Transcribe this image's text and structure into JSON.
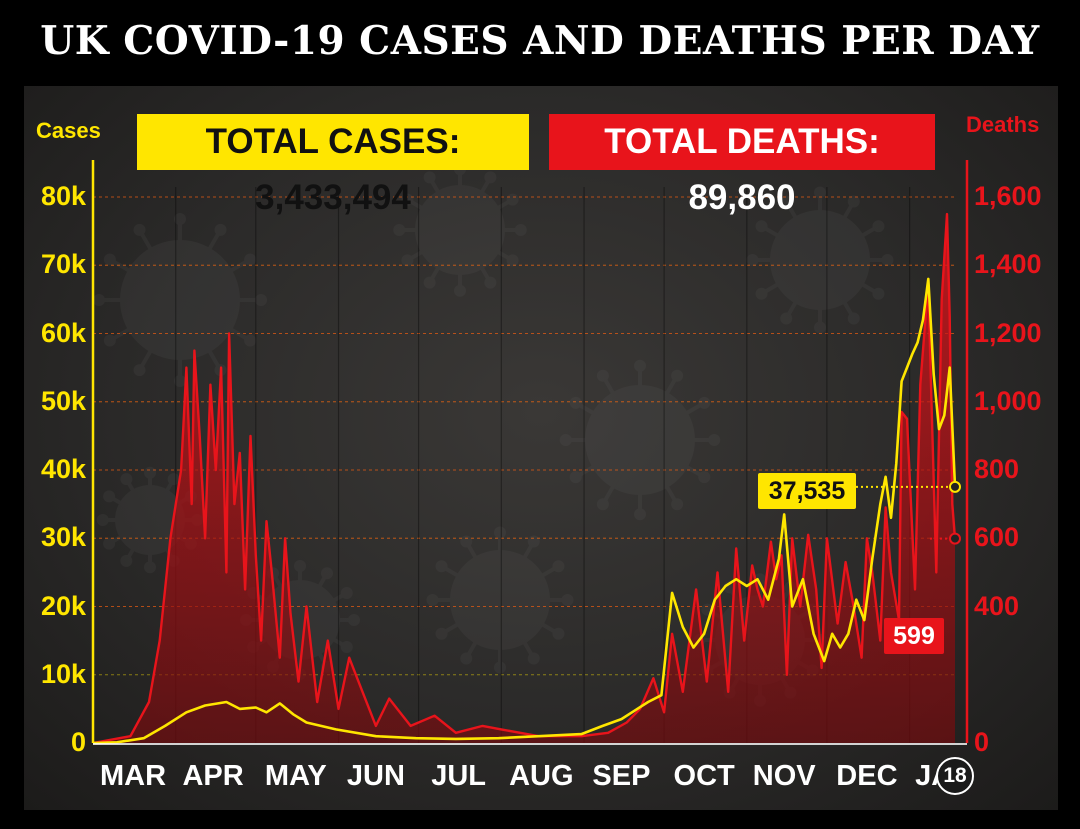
{
  "title": "UK COVID-19 CASES AND DEATHS PER DAY",
  "totals": {
    "cases_label": "TOTAL CASES: 3,433,494",
    "deaths_label": "TOTAL DEATHS: 89,860"
  },
  "colors": {
    "cases": "#ffe600",
    "deaths": "#e8141b",
    "background": "#2b2a29",
    "title": "#ffffff"
  },
  "latest": {
    "cases_label": "37,535",
    "deaths_label": "599",
    "date_label": "18"
  },
  "chart_data": {
    "type": "line",
    "title": "UK COVID-19 CASES AND DEATHS PER DAY",
    "x_axis": {
      "tick_labels": [
        "MAR",
        "APR",
        "MAY",
        "JUN",
        "JUL",
        "AUG",
        "SEP",
        "OCT",
        "NOV",
        "DEC",
        "JA"
      ],
      "range": [
        "2020-03-01",
        "2021-01-18"
      ]
    },
    "y_left": {
      "label": "Cases",
      "ylim": [
        0,
        80000
      ],
      "ticks": [
        0,
        10000,
        20000,
        30000,
        40000,
        50000,
        60000,
        70000,
        80000
      ],
      "tick_labels": [
        "0",
        "10k",
        "20k",
        "30k",
        "40k",
        "50k",
        "60k",
        "70k",
        "80k"
      ]
    },
    "y_right": {
      "label": "Deaths",
      "ylim": [
        0,
        1600
      ],
      "ticks": [
        0,
        400,
        600,
        800,
        1000,
        1200,
        1400,
        1600
      ],
      "tick_labels": [
        "0",
        "400",
        "600",
        "800",
        "1,000",
        "1,200",
        "1,400",
        "1,600"
      ]
    },
    "grid": true,
    "series": [
      {
        "name": "Cases",
        "axis": "left",
        "style": "line",
        "points": [
          [
            "2020-03-01",
            0
          ],
          [
            "2020-03-10",
            100
          ],
          [
            "2020-03-20",
            700
          ],
          [
            "2020-03-28",
            2500
          ],
          [
            "2020-04-05",
            4500
          ],
          [
            "2020-04-12",
            5500
          ],
          [
            "2020-04-20",
            6000
          ],
          [
            "2020-04-25",
            5000
          ],
          [
            "2020-05-01",
            5200
          ],
          [
            "2020-05-05",
            4500
          ],
          [
            "2020-05-10",
            5800
          ],
          [
            "2020-05-15",
            4200
          ],
          [
            "2020-05-20",
            3000
          ],
          [
            "2020-05-31",
            2000
          ],
          [
            "2020-06-15",
            1000
          ],
          [
            "2020-06-30",
            700
          ],
          [
            "2020-07-15",
            600
          ],
          [
            "2020-07-31",
            700
          ],
          [
            "2020-08-15",
            1000
          ],
          [
            "2020-08-31",
            1300
          ],
          [
            "2020-09-08",
            2500
          ],
          [
            "2020-09-15",
            3500
          ],
          [
            "2020-09-25",
            6000
          ],
          [
            "2020-09-30",
            7000
          ],
          [
            "2020-10-04",
            22000
          ],
          [
            "2020-10-08",
            17000
          ],
          [
            "2020-10-12",
            14000
          ],
          [
            "2020-10-16",
            16000
          ],
          [
            "2020-10-20",
            21000
          ],
          [
            "2020-10-24",
            23000
          ],
          [
            "2020-10-28",
            24000
          ],
          [
            "2020-11-01",
            23000
          ],
          [
            "2020-11-05",
            24000
          ],
          [
            "2020-11-09",
            21000
          ],
          [
            "2020-11-13",
            27000
          ],
          [
            "2020-11-15",
            33500
          ],
          [
            "2020-11-18",
            20000
          ],
          [
            "2020-11-22",
            24000
          ],
          [
            "2020-11-26",
            16000
          ],
          [
            "2020-11-30",
            12000
          ],
          [
            "2020-12-03",
            16000
          ],
          [
            "2020-12-06",
            14000
          ],
          [
            "2020-12-09",
            16000
          ],
          [
            "2020-12-12",
            21000
          ],
          [
            "2020-12-15",
            18000
          ],
          [
            "2020-12-18",
            27000
          ],
          [
            "2020-12-21",
            35000
          ],
          [
            "2020-12-23",
            39000
          ],
          [
            "2020-12-25",
            33000
          ],
          [
            "2020-12-27",
            41000
          ],
          [
            "2020-12-29",
            53000
          ],
          [
            "2020-12-31",
            55000
          ],
          [
            "2021-01-02",
            57000
          ],
          [
            "2021-01-04",
            58700
          ],
          [
            "2021-01-06",
            62000
          ],
          [
            "2021-01-08",
            68000
          ],
          [
            "2021-01-10",
            54000
          ],
          [
            "2021-01-12",
            46000
          ],
          [
            "2021-01-14",
            48000
          ],
          [
            "2021-01-16",
            55000
          ],
          [
            "2021-01-18",
            37535
          ]
        ]
      },
      {
        "name": "Deaths",
        "axis": "right",
        "style": "area",
        "points": [
          [
            "2020-03-01",
            0
          ],
          [
            "2020-03-15",
            20
          ],
          [
            "2020-03-22",
            120
          ],
          [
            "2020-03-26",
            300
          ],
          [
            "2020-03-30",
            600
          ],
          [
            "2020-04-03",
            800
          ],
          [
            "2020-04-05",
            1100
          ],
          [
            "2020-04-07",
            700
          ],
          [
            "2020-04-08",
            1150
          ],
          [
            "2020-04-10",
            900
          ],
          [
            "2020-04-12",
            600
          ],
          [
            "2020-04-14",
            1050
          ],
          [
            "2020-04-16",
            800
          ],
          [
            "2020-04-18",
            1100
          ],
          [
            "2020-04-20",
            500
          ],
          [
            "2020-04-21",
            1200
          ],
          [
            "2020-04-23",
            700
          ],
          [
            "2020-04-25",
            850
          ],
          [
            "2020-04-27",
            450
          ],
          [
            "2020-04-29",
            900
          ],
          [
            "2020-05-01",
            550
          ],
          [
            "2020-05-03",
            300
          ],
          [
            "2020-05-05",
            650
          ],
          [
            "2020-05-07",
            500
          ],
          [
            "2020-05-10",
            250
          ],
          [
            "2020-05-12",
            600
          ],
          [
            "2020-05-14",
            380
          ],
          [
            "2020-05-17",
            180
          ],
          [
            "2020-05-20",
            400
          ],
          [
            "2020-05-24",
            120
          ],
          [
            "2020-05-28",
            300
          ],
          [
            "2020-06-01",
            100
          ],
          [
            "2020-06-05",
            250
          ],
          [
            "2020-06-10",
            150
          ],
          [
            "2020-06-15",
            50
          ],
          [
            "2020-06-20",
            130
          ],
          [
            "2020-06-28",
            50
          ],
          [
            "2020-07-07",
            80
          ],
          [
            "2020-07-15",
            30
          ],
          [
            "2020-07-25",
            50
          ],
          [
            "2020-08-01",
            40
          ],
          [
            "2020-08-15",
            20
          ],
          [
            "2020-08-31",
            20
          ],
          [
            "2020-09-10",
            30
          ],
          [
            "2020-09-17",
            60
          ],
          [
            "2020-09-22",
            100
          ],
          [
            "2020-09-27",
            190
          ],
          [
            "2020-10-01",
            90
          ],
          [
            "2020-10-04",
            320
          ],
          [
            "2020-10-08",
            150
          ],
          [
            "2020-10-13",
            450
          ],
          [
            "2020-10-17",
            180
          ],
          [
            "2020-10-21",
            500
          ],
          [
            "2020-10-25",
            150
          ],
          [
            "2020-10-28",
            570
          ],
          [
            "2020-10-31",
            300
          ],
          [
            "2020-11-03",
            520
          ],
          [
            "2020-11-05",
            450
          ],
          [
            "2020-11-07",
            400
          ],
          [
            "2020-11-10",
            590
          ],
          [
            "2020-11-12",
            480
          ],
          [
            "2020-11-14",
            550
          ],
          [
            "2020-11-16",
            200
          ],
          [
            "2020-11-18",
            600
          ],
          [
            "2020-11-21",
            400
          ],
          [
            "2020-11-24",
            610
          ],
          [
            "2020-11-27",
            450
          ],
          [
            "2020-11-29",
            220
          ],
          [
            "2020-12-01",
            600
          ],
          [
            "2020-12-05",
            350
          ],
          [
            "2020-12-08",
            530
          ],
          [
            "2020-12-11",
            400
          ],
          [
            "2020-12-14",
            250
          ],
          [
            "2020-12-16",
            600
          ],
          [
            "2020-12-18",
            500
          ],
          [
            "2020-12-21",
            300
          ],
          [
            "2020-12-23",
            690
          ],
          [
            "2020-12-25",
            500
          ],
          [
            "2020-12-28",
            360
          ],
          [
            "2020-12-29",
            970
          ],
          [
            "2020-12-31",
            950
          ],
          [
            "2021-01-03",
            450
          ],
          [
            "2021-01-05",
            1050
          ],
          [
            "2021-01-08",
            1350
          ],
          [
            "2021-01-09",
            1050
          ],
          [
            "2021-01-11",
            500
          ],
          [
            "2021-01-13",
            1300
          ],
          [
            "2021-01-15",
            1550
          ],
          [
            "2021-01-16",
            1250
          ],
          [
            "2021-01-17",
            700
          ],
          [
            "2021-01-18",
            599
          ]
        ]
      }
    ]
  }
}
